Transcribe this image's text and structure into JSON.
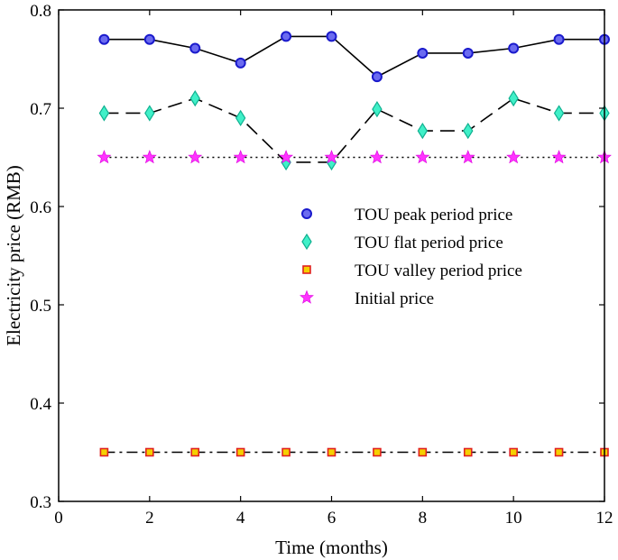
{
  "chart_data": {
    "type": "line",
    "title": "",
    "xlabel": "Time (months)",
    "ylabel": "Electricity price (RMB)",
    "xlim": [
      0,
      12
    ],
    "ylim": [
      0.3,
      0.8
    ],
    "x_ticks": [
      "0",
      "2",
      "4",
      "6",
      "8",
      "10",
      "12"
    ],
    "y_ticks": [
      "0.3",
      "0.4",
      "0.5",
      "0.6",
      "0.7",
      "0.8"
    ],
    "grid": false,
    "legend_position": "center-right",
    "x": [
      1,
      2,
      3,
      4,
      5,
      6,
      7,
      8,
      9,
      10,
      11,
      12
    ],
    "series": [
      {
        "name": "TOU peak period price",
        "values": [
          0.77,
          0.77,
          0.761,
          0.746,
          0.773,
          0.773,
          0.732,
          0.756,
          0.756,
          0.761,
          0.77,
          0.77
        ],
        "color": "#000000",
        "marker": "circle",
        "marker_fill": "#6b6bf0",
        "marker_stroke": "#1a1acc",
        "line_style": "solid"
      },
      {
        "name": "TOU flat period price",
        "values": [
          0.695,
          0.695,
          0.71,
          0.69,
          0.645,
          0.645,
          0.699,
          0.677,
          0.677,
          0.71,
          0.695,
          0.695
        ],
        "color": "#000000",
        "marker": "diamond",
        "marker_fill": "#40f0c8",
        "marker_stroke": "#10b090",
        "line_style": "dashed"
      },
      {
        "name": "TOU valley period price",
        "values": [
          0.35,
          0.35,
          0.35,
          0.35,
          0.35,
          0.35,
          0.35,
          0.35,
          0.35,
          0.35,
          0.35,
          0.35
        ],
        "color": "#000000",
        "marker": "square",
        "marker_fill": "#f5d000",
        "marker_stroke": "#e02020",
        "line_style": "dashdot"
      },
      {
        "name": "Initial price",
        "values": [
          0.65,
          0.65,
          0.65,
          0.65,
          0.65,
          0.65,
          0.65,
          0.65,
          0.65,
          0.65,
          0.65,
          0.65
        ],
        "color": "#000000",
        "marker": "star",
        "marker_fill": "#ff33ff",
        "marker_stroke": "#dd00dd",
        "line_style": "dotted"
      }
    ]
  }
}
